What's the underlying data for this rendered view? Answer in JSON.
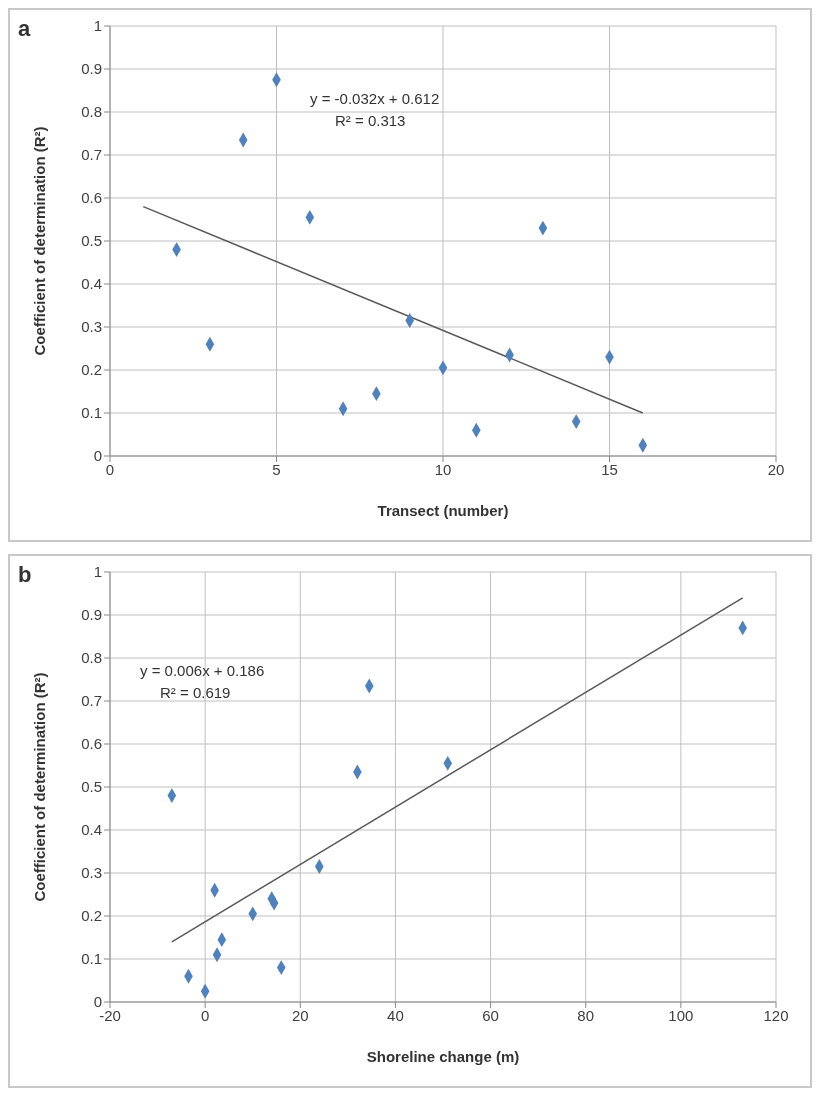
{
  "chart_data": [
    {
      "type": "scatter",
      "xlabel": "Transect (number)",
      "ylabel": "Coefficient of determination (R²)",
      "annotations": [
        "a",
        "y = -0.032x + 0.612",
        "R² = 0.313"
      ],
      "xlim": [
        0,
        20
      ],
      "xticks": [
        0,
        5,
        10,
        15,
        20
      ],
      "ylim": [
        0,
        1
      ],
      "yticks": [
        0,
        0.1,
        0.2,
        0.3,
        0.4,
        0.5,
        0.6,
        0.7,
        0.8,
        0.9,
        1
      ],
      "grid": true,
      "marker": "diamond",
      "series": [
        {
          "color": "#4f81bd",
          "x": [
            2,
            3,
            4,
            5,
            6,
            7,
            8,
            9,
            10,
            11,
            12,
            13,
            14,
            15,
            16
          ],
          "values": [
            0.48,
            0.26,
            0.735,
            0.875,
            0.555,
            0.11,
            0.145,
            0.315,
            0.205,
            0.06,
            0.235,
            0.53,
            0.08,
            0.23,
            0.025
          ]
        },
        {
          "type": "line",
          "color": "#595959",
          "marker": "none",
          "x": [
            1,
            16
          ],
          "values": [
            0.58,
            0.1
          ]
        }
      ]
    },
    {
      "type": "scatter",
      "xlabel": "Shoreline change (m)",
      "ylabel": "Coefficient of determination (R²)",
      "annotations": [
        "b",
        "y = 0.006x + 0.186",
        "R² = 0.619"
      ],
      "xlim": [
        -20,
        120
      ],
      "xticks": [
        -20,
        0,
        20,
        40,
        60,
        80,
        100,
        120
      ],
      "ylim": [
        0,
        1
      ],
      "yticks": [
        0,
        0.1,
        0.2,
        0.3,
        0.4,
        0.5,
        0.6,
        0.7,
        0.8,
        0.9,
        1
      ],
      "grid": true,
      "marker": "diamond",
      "series": [
        {
          "color": "#4f81bd",
          "x": [
            -7,
            -3.5,
            0,
            2,
            2.5,
            3.5,
            10,
            14,
            14.5,
            16,
            24,
            32,
            34.5,
            51,
            113
          ],
          "values": [
            0.48,
            0.06,
            0.025,
            0.26,
            0.11,
            0.145,
            0.205,
            0.24,
            0.23,
            0.08,
            0.315,
            0.535,
            0.735,
            0.555,
            0.87
          ]
        },
        {
          "type": "line",
          "color": "#595959",
          "marker": "none",
          "x": [
            -7,
            113
          ],
          "values": [
            0.14,
            0.94
          ]
        }
      ]
    }
  ]
}
